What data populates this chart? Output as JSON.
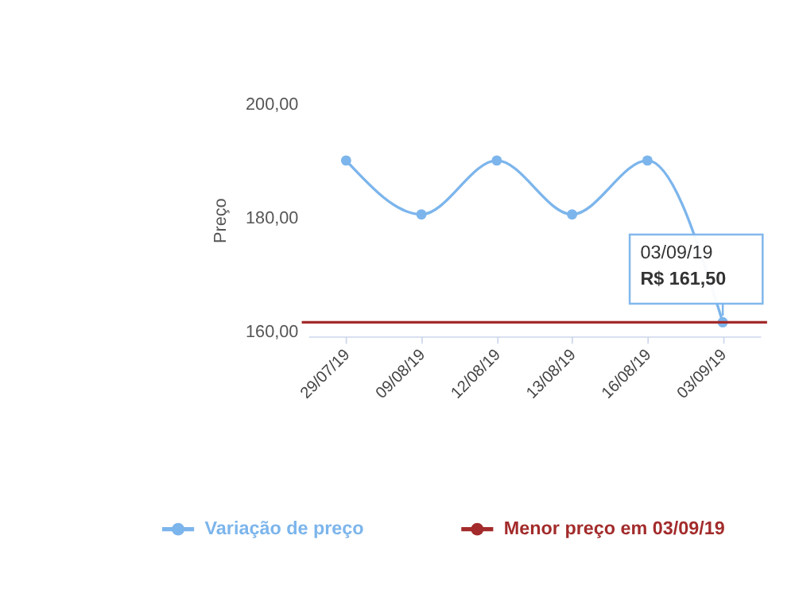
{
  "chart_data": {
    "type": "line",
    "ylabel": "Preço",
    "categories": [
      "29/07/19",
      "09/08/19",
      "12/08/19",
      "13/08/19",
      "16/08/19",
      "03/09/19"
    ],
    "series": [
      {
        "name": "Variação de preço",
        "color": "#7cb5ec",
        "values": [
          190,
          180.5,
          190,
          180.5,
          190,
          161.5
        ]
      }
    ],
    "ylim": [
      159,
      200
    ],
    "yticks": [
      {
        "value": 160,
        "label": "160,00"
      },
      {
        "value": 180,
        "label": "180,00"
      },
      {
        "value": 200,
        "label": "200,00"
      }
    ],
    "ref_lines": [
      {
        "axis": "y",
        "value": 161.5,
        "label": "Menor preço em 03/09/19",
        "color": "#a32b2b"
      }
    ],
    "annotations": [
      "03/09/19",
      "R$ 161,50"
    ],
    "marker": "circle",
    "grid": false,
    "legend": "bottom"
  }
}
